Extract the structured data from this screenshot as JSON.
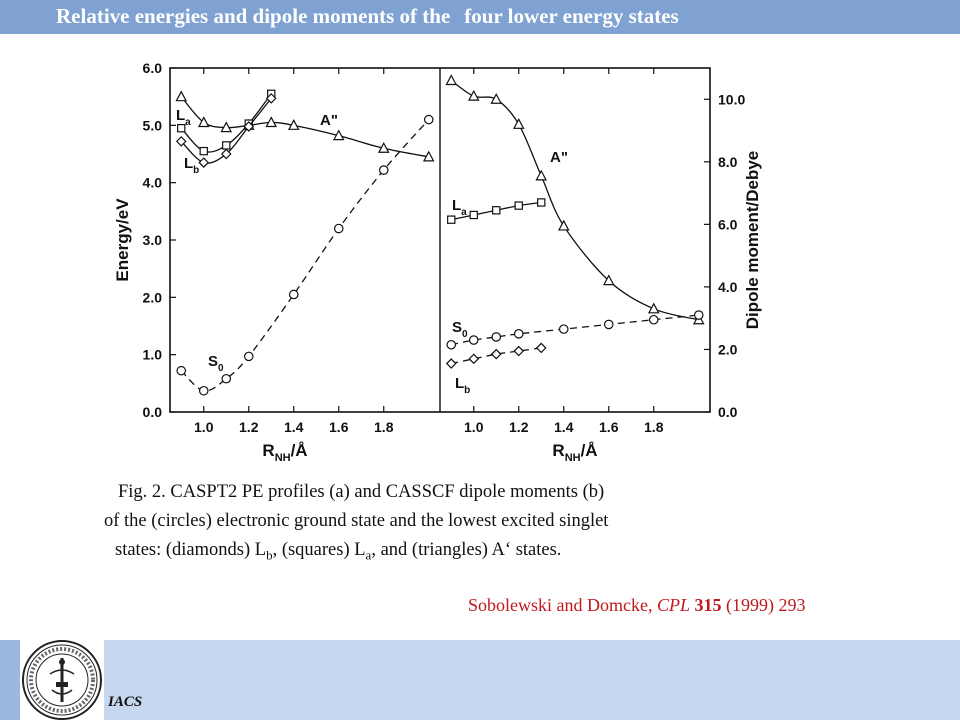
{
  "slide": {
    "title_part1": "Relative energies and dipole moments of the",
    "title_part2": "four lower energy states",
    "caption": {
      "line1": "Fig. 2. CASPT2 PE profiles (a) and CASSCF dipole moments (b)",
      "line2": "of the (circles) electronic ground state and the lowest excited singlet",
      "line3_a": "states: (diamonds) L",
      "line3_sub_b": "b",
      "line3_b": ", (squares) L",
      "line3_sub_a": "a",
      "line3_c": ", and (triangles) A‘ states."
    },
    "citation": {
      "authors": "Sobolewski and Domcke, ",
      "journal": "CPL",
      "volume": "315",
      "year_pages": " (1999) 293"
    },
    "footer_label": "IACS",
    "colors": {
      "title_bar": "#7fa2d3",
      "footer_bar": "#c6d8ef",
      "citation": "#c0181b"
    }
  },
  "chart_data": [
    {
      "panel": "a",
      "type": "line",
      "xlabel_main": "R",
      "xlabel_sub": "NH",
      "xlabel_unit": "/Å",
      "ylabel": "Energy/eV",
      "xlim": [
        0.85,
        2.05
      ],
      "ylim": [
        0,
        6
      ],
      "xticks": [
        "1.0",
        "1.2",
        "1.4",
        "1.6",
        "1.8"
      ],
      "yticks": [
        "0.0",
        "1.0",
        "2.0",
        "3.0",
        "4.0",
        "5.0",
        "6.0"
      ],
      "series": [
        {
          "marker": "triangle",
          "line": "solid",
          "label_main": "A\"",
          "label_sub": "",
          "x": [
            0.9,
            1.0,
            1.1,
            1.2,
            1.3,
            1.4,
            1.6,
            1.8,
            2.0
          ],
          "y": [
            5.5,
            5.05,
            4.96,
            5.0,
            5.05,
            5.0,
            4.82,
            4.6,
            4.45
          ]
        },
        {
          "marker": "square",
          "line": "solid",
          "label_main": "L",
          "label_sub": "a",
          "x": [
            0.9,
            1.0,
            1.1,
            1.2,
            1.3
          ],
          "y": [
            4.95,
            4.55,
            4.65,
            5.03,
            5.55
          ]
        },
        {
          "marker": "diamond",
          "line": "solid",
          "label_main": "L",
          "label_sub": "b",
          "x": [
            0.9,
            1.0,
            1.1,
            1.2,
            1.3
          ],
          "y": [
            4.72,
            4.35,
            4.5,
            4.98,
            5.47
          ]
        },
        {
          "marker": "circle",
          "line": "dashed",
          "label_main": "S",
          "label_sub": "0",
          "x": [
            0.9,
            1.0,
            1.1,
            1.2,
            1.4,
            1.6,
            1.8,
            2.0
          ],
          "y": [
            0.72,
            0.37,
            0.58,
            0.97,
            2.05,
            3.2,
            4.22,
            5.1
          ]
        }
      ]
    },
    {
      "panel": "b",
      "type": "line",
      "xlabel_main": "R",
      "xlabel_sub": "NH",
      "xlabel_unit": "/Å",
      "ylabel": "Dipole moment/Debye",
      "xlim": [
        0.85,
        2.05
      ],
      "ylim": [
        0,
        11
      ],
      "xticks": [
        "1.0",
        "1.2",
        "1.4",
        "1.6",
        "1.8"
      ],
      "yticks": [
        "0.0",
        "2.0",
        "4.0",
        "6.0",
        "8.0",
        "10.0"
      ],
      "series": [
        {
          "marker": "triangle",
          "line": "solid",
          "label_main": "A\"",
          "label_sub": "",
          "x": [
            0.9,
            1.0,
            1.1,
            1.2,
            1.3,
            1.4,
            1.6,
            1.8,
            2.0
          ],
          "y": [
            10.6,
            10.1,
            10.0,
            9.2,
            7.55,
            5.95,
            4.2,
            3.3,
            2.95
          ]
        },
        {
          "marker": "square",
          "line": "solid",
          "label_main": "L",
          "label_sub": "a",
          "x": [
            0.9,
            1.0,
            1.1,
            1.2,
            1.3
          ],
          "y": [
            6.15,
            6.3,
            6.45,
            6.6,
            6.7
          ]
        },
        {
          "marker": "circle",
          "line": "dashed",
          "label_main": "S",
          "label_sub": "0",
          "x": [
            0.9,
            1.0,
            1.1,
            1.2,
            1.4,
            1.6,
            1.8,
            2.0
          ],
          "y": [
            2.15,
            2.3,
            2.4,
            2.5,
            2.65,
            2.8,
            2.95,
            3.1
          ]
        },
        {
          "marker": "diamond",
          "line": "dashed",
          "label_main": "L",
          "label_sub": "b",
          "x": [
            0.9,
            1.0,
            1.1,
            1.2,
            1.3
          ],
          "y": [
            1.55,
            1.7,
            1.85,
            1.95,
            2.05
          ]
        }
      ]
    }
  ]
}
